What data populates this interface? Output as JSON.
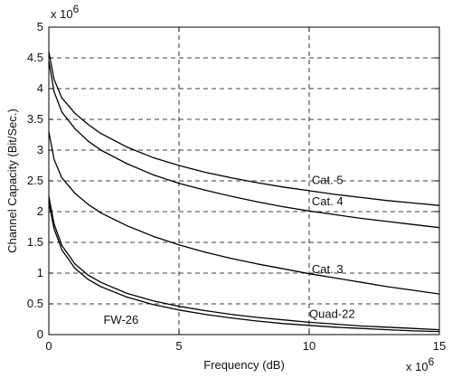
{
  "chart_data": {
    "type": "line",
    "xlabel": "Frequency (dB)",
    "ylabel": "Channel Capacity (Bit/Sec.)",
    "xlim": [
      0,
      15
    ],
    "ylim": [
      0,
      5
    ],
    "x_ticks": [
      0,
      5,
      10,
      15
    ],
    "y_ticks": [
      0,
      0.5,
      1,
      1.5,
      2,
      2.5,
      3,
      3.5,
      4,
      4.5,
      5
    ],
    "x_tick_labels": [
      "0",
      "5",
      "10",
      "15"
    ],
    "y_tick_labels": [
      "0",
      "0.5",
      "1",
      "1.5",
      "2",
      "2.5",
      "3",
      "3.5",
      "4",
      "4.5",
      "5"
    ],
    "x_multiplier": "x 10",
    "x_multiplier_exp": "6",
    "y_multiplier": "x 10",
    "y_multiplier_exp": "6",
    "grid": true,
    "grid_style": "dashed",
    "series": [
      {
        "name": "Cat. 5",
        "x": [
          0,
          0.2,
          0.5,
          1,
          1.5,
          2,
          3,
          4,
          5,
          6,
          7,
          8,
          9,
          10,
          11,
          12,
          13,
          14,
          15
        ],
        "values": [
          4.6,
          4.15,
          3.85,
          3.6,
          3.42,
          3.27,
          3.05,
          2.88,
          2.75,
          2.64,
          2.55,
          2.47,
          2.4,
          2.34,
          2.28,
          2.23,
          2.18,
          2.14,
          2.1
        ]
      },
      {
        "name": "Cat. 4",
        "x": [
          0,
          0.2,
          0.5,
          1,
          1.5,
          2,
          3,
          4,
          5,
          6,
          7,
          8,
          9,
          10,
          11,
          12,
          13,
          14,
          15
        ],
        "values": [
          4.45,
          3.95,
          3.62,
          3.35,
          3.15,
          3.0,
          2.78,
          2.6,
          2.46,
          2.35,
          2.25,
          2.16,
          2.08,
          2.01,
          1.95,
          1.89,
          1.84,
          1.79,
          1.74
        ]
      },
      {
        "name": "Cat. 3",
        "x": [
          0,
          0.2,
          0.5,
          1,
          1.5,
          2,
          3,
          4,
          5,
          6,
          7,
          8,
          9,
          10,
          11,
          12,
          13,
          14,
          15
        ],
        "values": [
          3.3,
          2.85,
          2.55,
          2.3,
          2.12,
          1.98,
          1.77,
          1.6,
          1.46,
          1.34,
          1.24,
          1.15,
          1.07,
          0.99,
          0.92,
          0.85,
          0.78,
          0.72,
          0.66
        ]
      },
      {
        "name": "Quad-22",
        "x": [
          0,
          0.2,
          0.5,
          1,
          1.5,
          2,
          3,
          4,
          5,
          6,
          7,
          8,
          9,
          10,
          11,
          12,
          13,
          14,
          15
        ],
        "values": [
          2.25,
          1.8,
          1.45,
          1.15,
          0.97,
          0.85,
          0.67,
          0.55,
          0.46,
          0.39,
          0.33,
          0.28,
          0.24,
          0.2,
          0.17,
          0.14,
          0.12,
          0.1,
          0.08
        ]
      },
      {
        "name": "FW-26",
        "x": [
          0,
          0.2,
          0.5,
          1,
          1.5,
          2,
          3,
          4,
          5,
          6,
          7,
          8,
          9,
          10,
          11,
          12,
          13,
          14,
          15
        ],
        "values": [
          2.15,
          1.72,
          1.38,
          1.08,
          0.9,
          0.78,
          0.61,
          0.49,
          0.4,
          0.33,
          0.27,
          0.22,
          0.18,
          0.15,
          0.12,
          0.1,
          0.08,
          0.06,
          0.05
        ]
      }
    ],
    "annotations": [
      {
        "text": "Cat. 5",
        "x": 10.1,
        "y": 2.45
      },
      {
        "text": "Cat. 4",
        "x": 10.1,
        "y": 2.1
      },
      {
        "text": "Cat. 3",
        "x": 10.1,
        "y": 1.0
      },
      {
        "text": "Quad-22",
        "x": 10.0,
        "y": 0.27
      },
      {
        "text": "FW-26",
        "x": 2.1,
        "y": 0.18
      }
    ]
  }
}
